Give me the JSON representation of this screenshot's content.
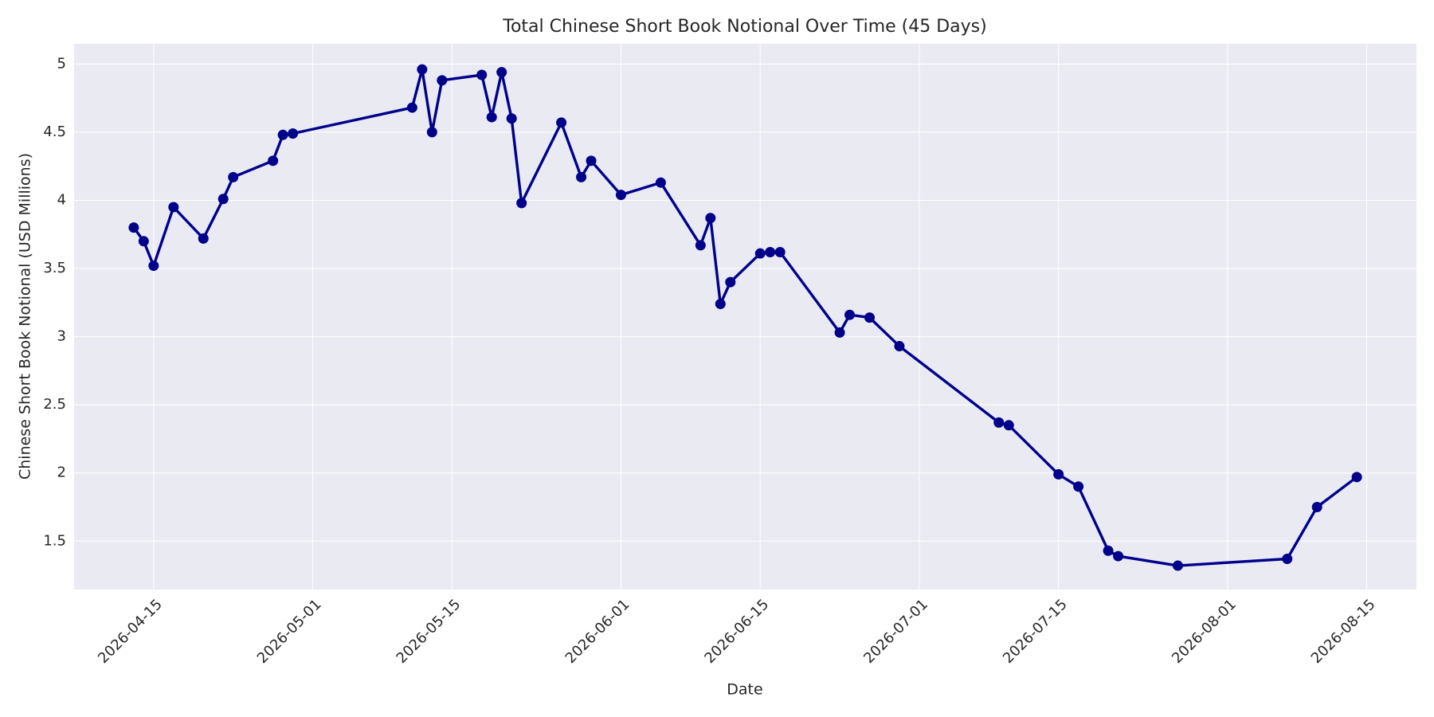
{
  "chart_data": {
    "type": "line",
    "title": "Total Chinese Short Book Notional Over Time (45 Days)",
    "x_label": "Date",
    "y_label": "Chinese Short Book Notional (USD Millions)",
    "x": [
      "2026-04-13",
      "2026-04-14",
      "2026-04-15",
      "2026-04-17",
      "2026-04-20",
      "2026-04-22",
      "2026-04-23",
      "2026-04-27",
      "2026-04-28",
      "2026-04-29",
      "2026-05-11",
      "2026-05-12",
      "2026-05-13",
      "2026-05-14",
      "2026-05-18",
      "2026-05-19",
      "2026-05-20",
      "2026-05-21",
      "2026-05-22",
      "2026-05-26",
      "2026-05-28",
      "2026-05-29",
      "2026-06-01",
      "2026-06-05",
      "2026-06-09",
      "2026-06-10",
      "2026-06-11",
      "2026-06-12",
      "2026-06-15",
      "2026-06-16",
      "2026-06-17",
      "2026-06-23",
      "2026-06-24",
      "2026-06-26",
      "2026-06-29",
      "2026-07-09",
      "2026-07-10",
      "2026-07-15",
      "2026-07-17",
      "2026-07-20",
      "2026-07-21",
      "2026-07-27",
      "2026-08-07",
      "2026-08-10",
      "2026-08-14"
    ],
    "values": [
      3.8,
      3.7,
      3.52,
      3.95,
      3.72,
      4.01,
      4.17,
      4.29,
      4.48,
      4.49,
      4.68,
      4.96,
      4.5,
      4.88,
      4.92,
      4.61,
      4.94,
      4.6,
      3.98,
      4.57,
      4.17,
      4.29,
      4.04,
      4.13,
      3.67,
      3.87,
      3.24,
      3.4,
      3.61,
      3.62,
      3.62,
      3.03,
      3.16,
      3.14,
      2.93,
      2.37,
      2.35,
      1.99,
      1.9,
      1.43,
      1.39,
      1.32,
      1.37,
      1.75,
      1.97
    ],
    "color": "#00008b",
    "xlim": [
      "2026-04-07",
      "2026-08-20"
    ],
    "xticks": [
      "2026-04-15",
      "2026-05-01",
      "2026-05-15",
      "2026-06-01",
      "2026-06-15",
      "2026-07-01",
      "2026-07-15",
      "2026-08-01",
      "2026-08-15"
    ],
    "ylim": [
      1.145,
      5.148
    ],
    "yticks": [
      1.5,
      2.0,
      2.5,
      3.0,
      3.5,
      4.0,
      4.5,
      5.0
    ],
    "grid": true
  }
}
